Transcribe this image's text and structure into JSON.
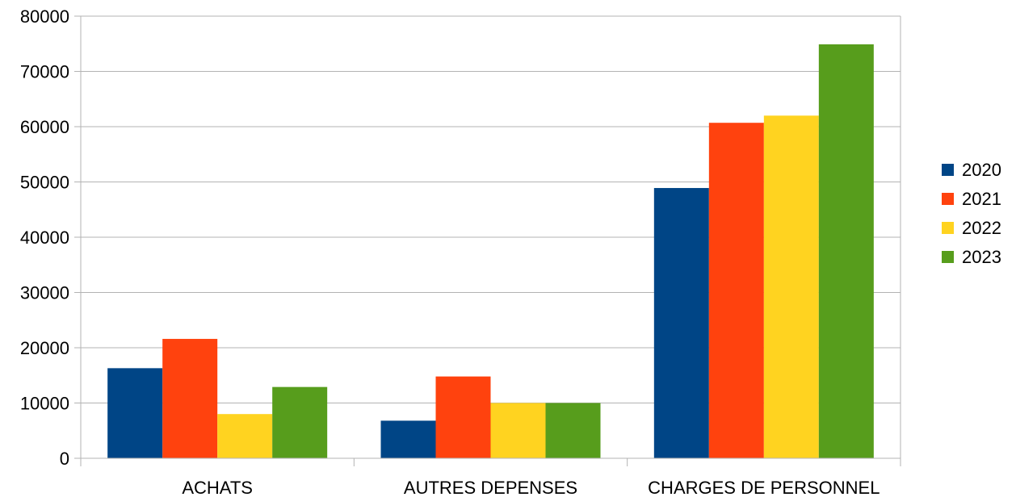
{
  "chart_data": {
    "type": "bar",
    "title": "",
    "xlabel": "",
    "ylabel": "",
    "categories": [
      "ACHATS",
      "AUTRES DEPENSES",
      "CHARGES DE PERSONNEL"
    ],
    "series": [
      {
        "name": "2020",
        "color": "#004586",
        "values": [
          16300,
          6800,
          48900
        ]
      },
      {
        "name": "2021",
        "color": "#ff420e",
        "values": [
          21600,
          14800,
          60700
        ]
      },
      {
        "name": "2022",
        "color": "#ffd320",
        "values": [
          8000,
          10000,
          62000
        ]
      },
      {
        "name": "2023",
        "color": "#579d1c",
        "values": [
          12900,
          10000,
          74900
        ]
      }
    ],
    "ylim": [
      0,
      80000
    ],
    "yticks": [
      "0",
      "10000",
      "20000",
      "30000",
      "40000",
      "50000",
      "60000",
      "70000",
      "80000"
    ],
    "grid": true,
    "legend_position": "right"
  }
}
